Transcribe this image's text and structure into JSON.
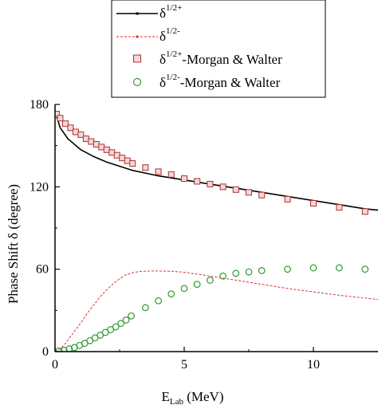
{
  "chart_data": {
    "type": "scatter",
    "xlabel": "E",
    "xlabel_sub": "Lab",
    "xlabel_unit": " (MeV)",
    "ylabel": "Phase Shift δ (degree)",
    "xlim": [
      0,
      12.5
    ],
    "ylim": [
      0,
      180
    ],
    "x_ticks": [
      0,
      5,
      10
    ],
    "y_ticks": [
      0,
      60,
      120,
      180
    ],
    "grid": false,
    "legend_position": "top",
    "colors": {
      "plus_curve": "#000000",
      "minus_curve": "#e03030",
      "plus_markers": "#b03030",
      "plus_marker_fill": "#f2d8d8",
      "minus_markers": "#2f9a2f"
    },
    "legend": [
      {
        "base": "δ",
        "sup": "1/2+",
        "suffix": "",
        "style": "line-black"
      },
      {
        "base": "δ",
        "sup": "1/2-",
        "suffix": "",
        "style": "line-red-dashed"
      },
      {
        "base": "δ",
        "sup": "1/2+",
        "suffix": "-Morgan & Walter",
        "style": "square-red"
      },
      {
        "base": "δ",
        "sup": "1/2-",
        "suffix": "-Morgan & Walter",
        "style": "circle-green"
      }
    ],
    "series": [
      {
        "name": "δ1/2+",
        "kind": "line",
        "x": [
          0.05,
          0.2,
          0.5,
          1,
          1.5,
          2,
          2.5,
          3,
          3.5,
          4,
          5,
          6,
          7,
          8,
          9,
          10,
          11,
          12,
          12.5
        ],
        "y": [
          172,
          163,
          155,
          147,
          142,
          138,
          135,
          132,
          130,
          128,
          125,
          122,
          119,
          116,
          113,
          110,
          107,
          104,
          103
        ]
      },
      {
        "name": "δ1/2-",
        "kind": "line",
        "x": [
          0,
          0.2,
          0.4,
          0.6,
          0.8,
          1,
          1.25,
          1.5,
          1.75,
          2,
          2.25,
          2.5,
          2.75,
          3,
          3.25,
          3.5,
          3.75,
          4,
          4.5,
          5,
          5.5,
          6,
          6.5,
          7,
          8,
          9,
          10,
          11,
          12,
          12.5
        ],
        "y": [
          0,
          2,
          6,
          11,
          16,
          21,
          28,
          34,
          40,
          45,
          49.5,
          53,
          56,
          57.5,
          58.3,
          58.6,
          58.7,
          58.7,
          58.5,
          57.8,
          56.5,
          55,
          53.5,
          52,
          49,
          46,
          43.5,
          41,
          39,
          38
        ]
      },
      {
        "name": "δ1/2+-Morgan & Walter",
        "kind": "square",
        "x": [
          0.06,
          0.2,
          0.4,
          0.6,
          0.8,
          1.0,
          1.2,
          1.4,
          1.6,
          1.8,
          2.0,
          2.2,
          2.4,
          2.6,
          2.8,
          3.0,
          3.5,
          4.0,
          4.5,
          5.0,
          5.5,
          6.0,
          6.5,
          7.0,
          7.5,
          8.0,
          9.0,
          10.0,
          11.0,
          12.0
        ],
        "y": [
          173,
          170,
          166,
          163,
          160,
          158,
          155,
          153,
          151,
          149,
          147,
          145,
          143,
          141,
          139,
          137,
          134,
          131,
          129,
          126,
          124,
          122,
          120,
          118,
          116,
          114,
          111,
          108,
          105,
          102
        ]
      },
      {
        "name": "δ1/2--Morgan & Walter",
        "kind": "circle",
        "x": [
          0.15,
          0.35,
          0.55,
          0.75,
          0.95,
          1.15,
          1.35,
          1.55,
          1.75,
          1.95,
          2.15,
          2.35,
          2.55,
          2.75,
          2.95,
          3.5,
          4.0,
          4.5,
          5.0,
          5.5,
          6.0,
          6.5,
          7.0,
          7.5,
          8.0,
          9.0,
          10.0,
          11.0,
          12.0
        ],
        "y": [
          0.5,
          1,
          2,
          3,
          4.5,
          6,
          8,
          10,
          12,
          14,
          16,
          18,
          20.5,
          23,
          26,
          32,
          37,
          42,
          46,
          49,
          52,
          55,
          57,
          58,
          59,
          60,
          61,
          61,
          60
        ]
      }
    ]
  }
}
